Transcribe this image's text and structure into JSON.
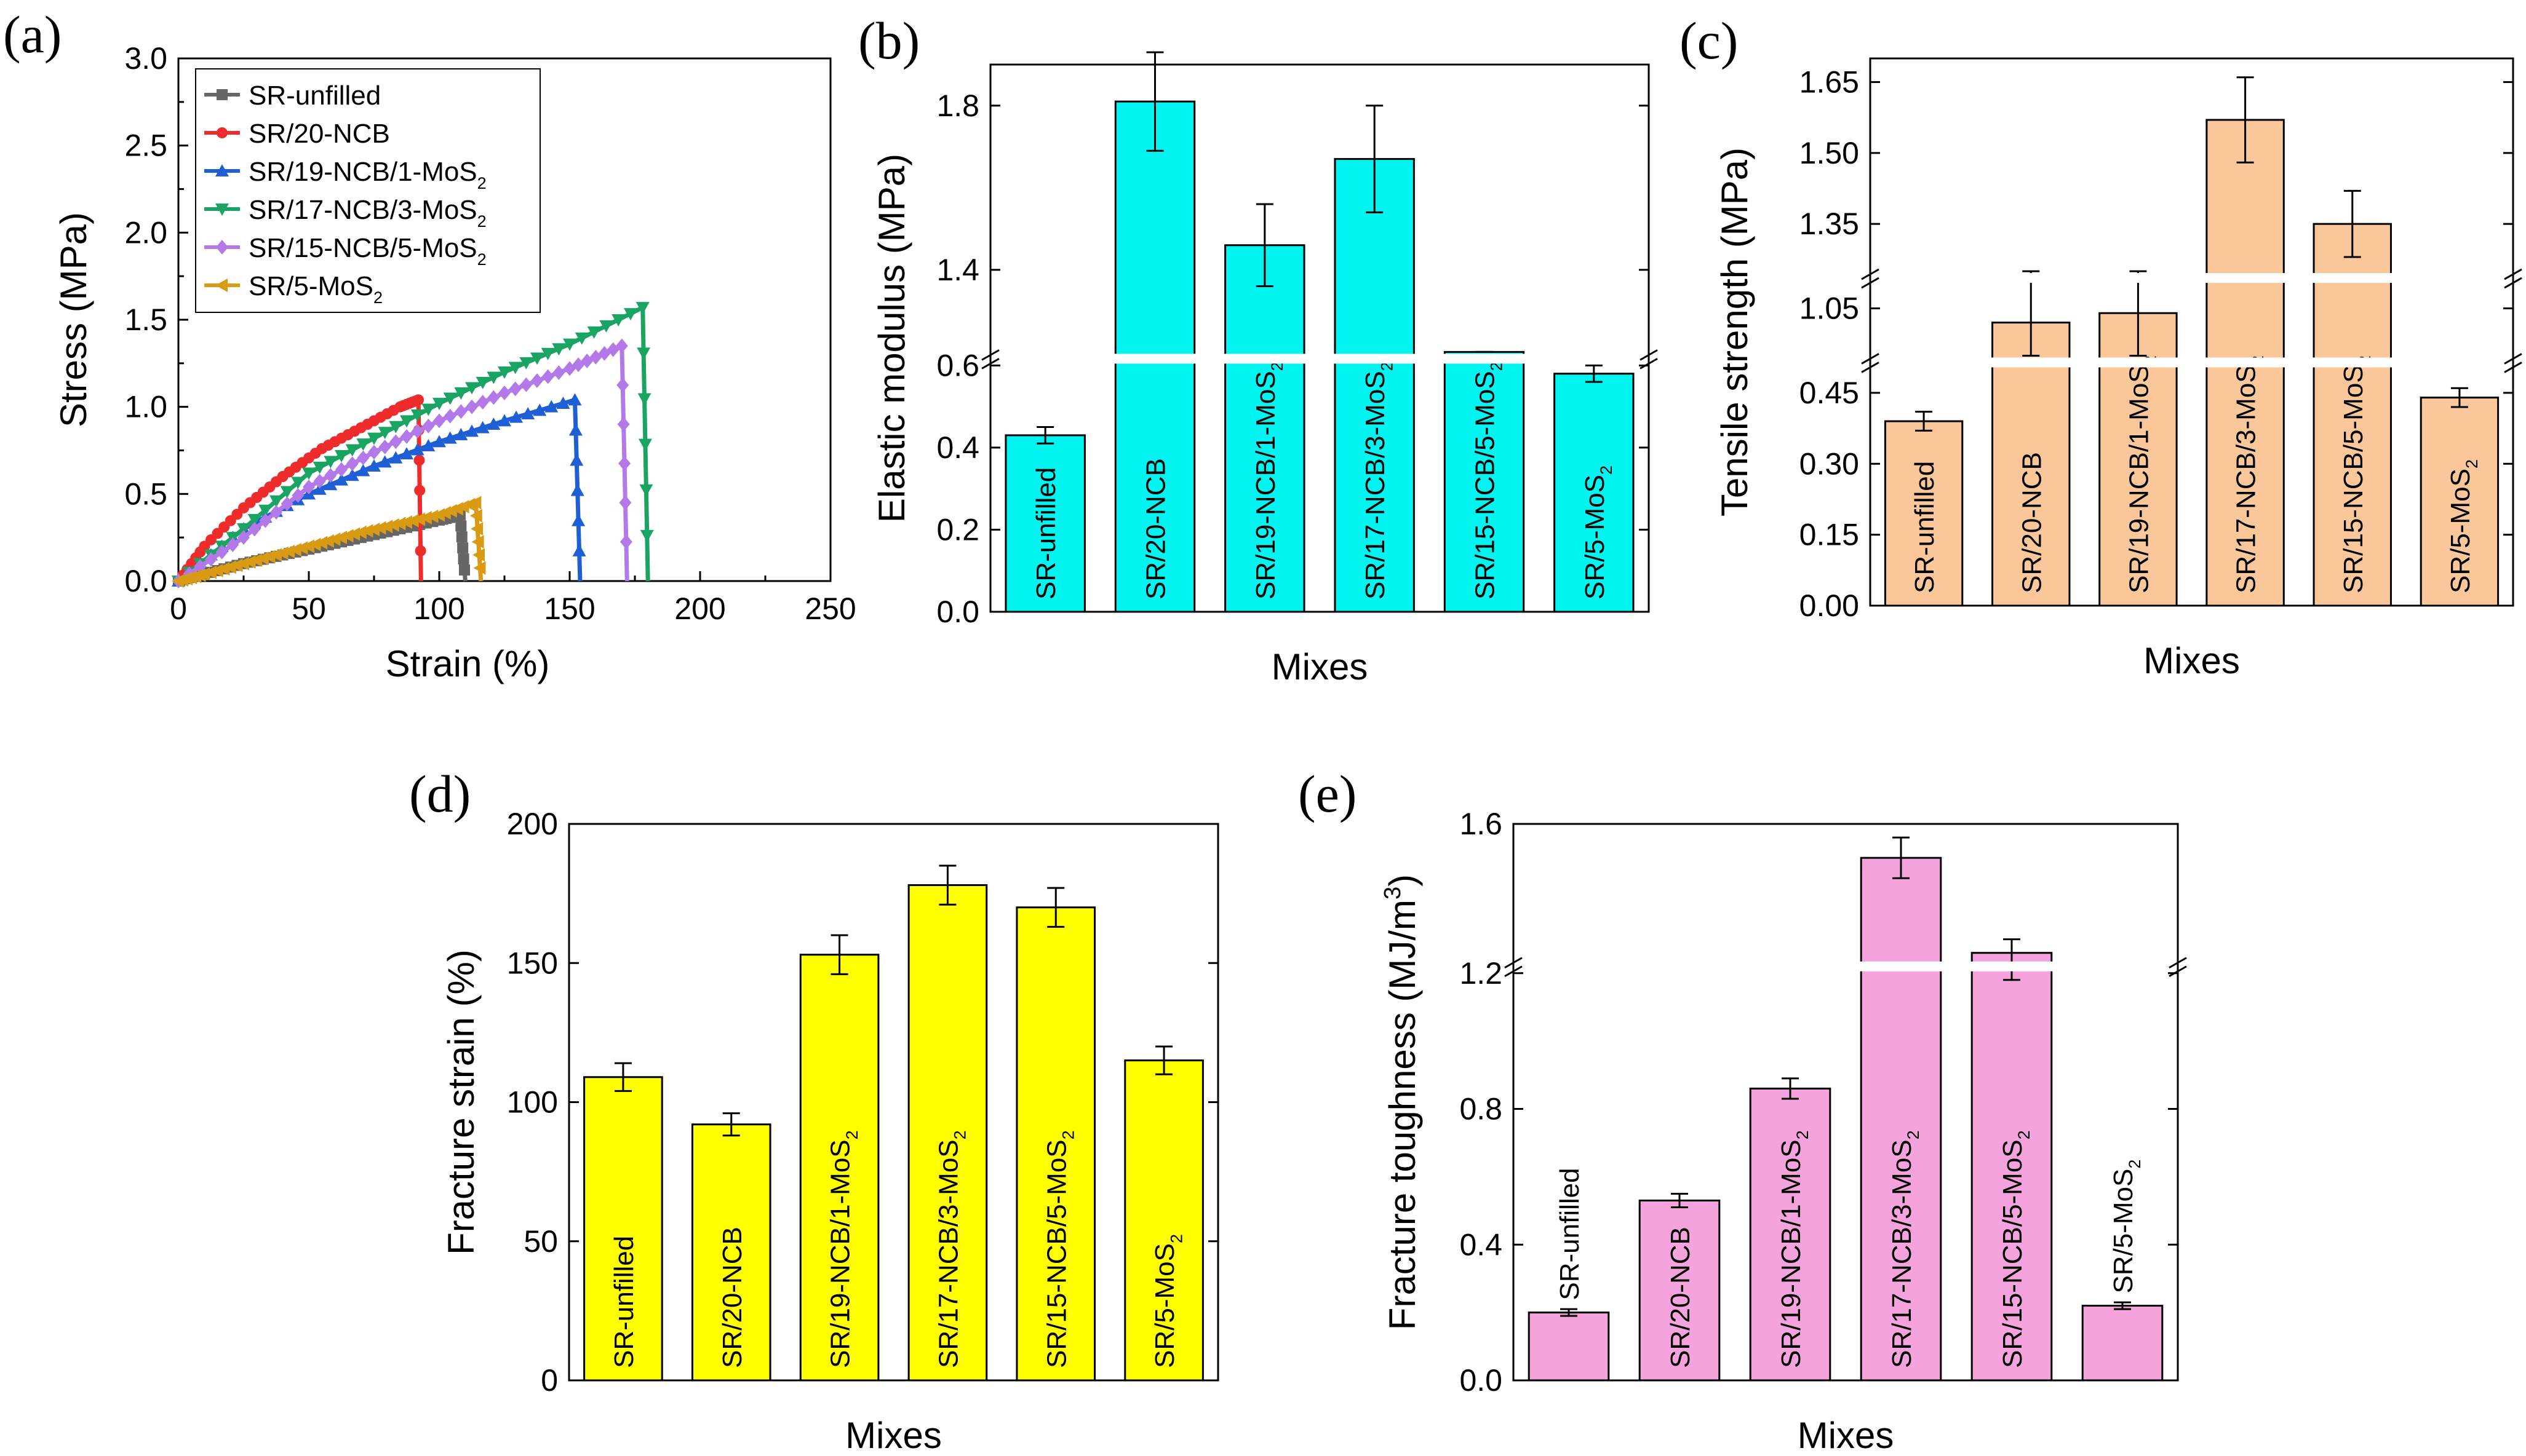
{
  "colors": {
    "axis": "#000000",
    "panel_b_bar": "#00f5f0",
    "panel_c_bar": "#f9c79a",
    "panel_d_bar": "#ffff00",
    "panel_e_bar": "#f5a3dd"
  },
  "chart_data": [
    {
      "panel": "(a)",
      "type": "line",
      "title": "",
      "xlabel": "Strain (%)",
      "ylabel": "Stress (MPa)",
      "xlim": [
        0,
        250
      ],
      "ylim": [
        0,
        3.0
      ],
      "xticks": [
        "0",
        "50",
        "100",
        "150",
        "200",
        "250"
      ],
      "yticks": [
        "0.0",
        "0.5",
        "1.0",
        "1.5",
        "2.0",
        "2.5",
        "3.0"
      ],
      "legend": {
        "placement": "top-left"
      },
      "series": [
        {
          "name": "SR-unfilled",
          "sub": "",
          "color": "#666666",
          "marker": "square",
          "x": [
            0,
            10,
            25,
            40,
            55,
            70,
            85,
            100,
            108,
            110
          ],
          "y": [
            0,
            0.04,
            0.1,
            0.15,
            0.2,
            0.25,
            0.3,
            0.35,
            0.38,
            0.0
          ]
        },
        {
          "name": "SR/20-NCB",
          "sub": "",
          "color": "#ee2c2c",
          "marker": "circle",
          "x": [
            0,
            10,
            25,
            40,
            55,
            70,
            85,
            92,
            93
          ],
          "y": [
            0,
            0.2,
            0.42,
            0.6,
            0.76,
            0.88,
            1.0,
            1.04,
            0.0
          ]
        },
        {
          "name": "SR/19-NCB/1-MoS",
          "sub": "2",
          "color": "#1f5fd6",
          "marker": "triangle-up",
          "x": [
            0,
            25,
            50,
            75,
            100,
            125,
            152,
            154
          ],
          "y": [
            0,
            0.3,
            0.5,
            0.66,
            0.8,
            0.92,
            1.04,
            0.0
          ]
        },
        {
          "name": "SR/17-NCB/3-MoS",
          "sub": "2",
          "color": "#1aa463",
          "marker": "triangle-down",
          "x": [
            0,
            25,
            50,
            75,
            100,
            125,
            150,
            178,
            180
          ],
          "y": [
            0,
            0.3,
            0.62,
            0.82,
            1.02,
            1.2,
            1.36,
            1.57,
            0.0
          ]
        },
        {
          "name": "SR/15-NCB/5-MoS",
          "sub": "2",
          "color": "#b479e8",
          "marker": "diamond",
          "x": [
            0,
            25,
            50,
            75,
            100,
            125,
            150,
            170,
            172
          ],
          "y": [
            0,
            0.25,
            0.54,
            0.74,
            0.92,
            1.08,
            1.22,
            1.35,
            0.0
          ]
        },
        {
          "name": "SR/5-MoS",
          "sub": "2",
          "color": "#d99a14",
          "marker": "triangle-left",
          "x": [
            0,
            10,
            25,
            40,
            55,
            70,
            85,
            100,
            114,
            116
          ],
          "y": [
            0,
            0.04,
            0.1,
            0.16,
            0.22,
            0.28,
            0.33,
            0.38,
            0.45,
            0.0
          ]
        }
      ]
    },
    {
      "panel": "(b)",
      "type": "bar",
      "xlabel": "Mixes",
      "ylabel": "Elastic modulus (MPa)",
      "categories": [
        "SR-unfilled",
        "SR/20-NCB",
        "SR/19-NCB/1-MoS",
        "SR/17-NCB/3-MoS",
        "SR/15-NCB/5-MoS",
        "SR/5-MoS"
      ],
      "category_subscripts": [
        "",
        "",
        "2",
        "2",
        "2",
        "2"
      ],
      "values": [
        0.43,
        1.81,
        1.46,
        1.67,
        0.66,
        0.58
      ],
      "errors": [
        0.02,
        0.12,
        0.1,
        0.13,
        0.03,
        0.02
      ],
      "broken_axis": [
        {
          "range": [
            0.0,
            0.6
          ],
          "ticks": [
            "0.0",
            "0.2",
            "0.4",
            "0.6"
          ]
        },
        {
          "range": [
            1.2,
            1.9
          ],
          "ticks": [
            "1.4",
            "1.8"
          ]
        }
      ]
    },
    {
      "panel": "(c)",
      "type": "bar",
      "xlabel": "Mixes",
      "ylabel": "Tensile strength (MPa)",
      "categories": [
        "SR-unfilled",
        "SR/20-NCB",
        "SR/19-NCB/1-MoS",
        "SR/17-NCB/3-MoS",
        "SR/15-NCB/5-MoS",
        "SR/5-MoS"
      ],
      "category_subscripts": [
        "",
        "",
        "2",
        "2",
        "2",
        "2"
      ],
      "values": [
        0.39,
        1.02,
        1.04,
        1.57,
        1.35,
        0.44
      ],
      "errors": [
        0.02,
        0.11,
        0.1,
        0.09,
        0.07,
        0.02
      ],
      "broken_axis": [
        {
          "range": [
            0.0,
            0.5
          ],
          "ticks": [
            "0.00",
            "0.15",
            "0.30",
            "0.45"
          ]
        },
        {
          "range": [
            0.95,
            1.1
          ],
          "ticks": [
            "1.05"
          ]
        },
        {
          "range": [
            1.25,
            1.7
          ],
          "ticks": [
            "1.35",
            "1.50",
            "1.65"
          ]
        }
      ]
    },
    {
      "panel": "(d)",
      "type": "bar",
      "xlabel": "Mixes",
      "ylabel": "Fracture strain (%)",
      "categories": [
        "SR-unfilled",
        "SR/20-NCB",
        "SR/19-NCB/1-MoS",
        "SR/17-NCB/3-MoS",
        "SR/15-NCB/5-MoS",
        "SR/5-MoS"
      ],
      "category_subscripts": [
        "",
        "",
        "2",
        "2",
        "2",
        "2"
      ],
      "values": [
        109,
        92,
        153,
        178,
        170,
        115
      ],
      "errors": [
        5,
        4,
        7,
        7,
        7,
        5
      ],
      "ylim": [
        0,
        200
      ],
      "yticks": [
        "0",
        "50",
        "100",
        "150",
        "200"
      ]
    },
    {
      "panel": "(e)",
      "type": "bar",
      "xlabel": "Mixes",
      "ylabel": "Fracture toughness (MJ/m",
      "ylabel_sup": "3",
      "ylabel_end": ")",
      "categories": [
        "SR-unfilled",
        "SR/20-NCB",
        "SR/19-NCB/1-MoS",
        "SR/17-NCB/3-MoS",
        "SR/15-NCB/5-MoS",
        "SR/5-MoS"
      ],
      "category_subscripts": [
        "",
        "",
        "2",
        "2",
        "2",
        "2"
      ],
      "values": [
        0.2,
        0.53,
        0.86,
        1.5,
        1.22,
        0.22
      ],
      "errors": [
        0.01,
        0.02,
        0.03,
        0.06,
        0.04,
        0.01
      ],
      "broken_axis": [
        {
          "range": [
            0.0,
            1.2
          ],
          "ticks": [
            "0.0",
            "0.4",
            "0.8",
            "1.2"
          ]
        },
        {
          "range": [
            1.2,
            1.6
          ],
          "ticks": [
            "1.6"
          ]
        }
      ]
    }
  ]
}
